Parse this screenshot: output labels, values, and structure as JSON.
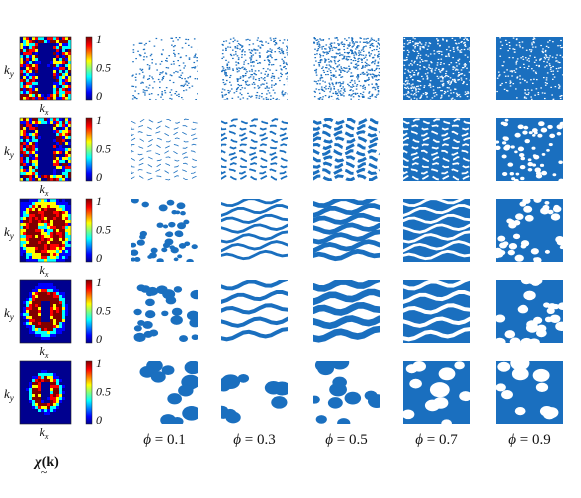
{
  "figure": {
    "axis_labels": {
      "x": "k",
      "x_sub": "x",
      "y": "k",
      "y_sub": "y"
    },
    "colorbar_ticks": [
      "1",
      "0.5",
      "0"
    ],
    "colorbar_caption": {
      "symbol": "χ",
      "arg": "(k)"
    },
    "phi_prefix": "ϕ = ",
    "phi_values": [
      "0.1",
      "0.3",
      "0.5",
      "0.7",
      "0.9"
    ],
    "colors": {
      "pattern_blue": "#1a6fbf",
      "spectrum_bg": "#1a1f8a",
      "colormap": [
        "#00008f",
        "#0000ff",
        "#00ffff",
        "#ffff00",
        "#ff0000",
        "#800000"
      ]
    },
    "rows": [
      {
        "id": "row-1",
        "spectrum": "rectangular-gap"
      },
      {
        "id": "row-2",
        "spectrum": "rectangular-gap"
      },
      {
        "id": "row-3",
        "spectrum": "ring"
      },
      {
        "id": "row-4",
        "spectrum": "ring"
      },
      {
        "id": "row-5",
        "spectrum": "ring"
      }
    ]
  }
}
